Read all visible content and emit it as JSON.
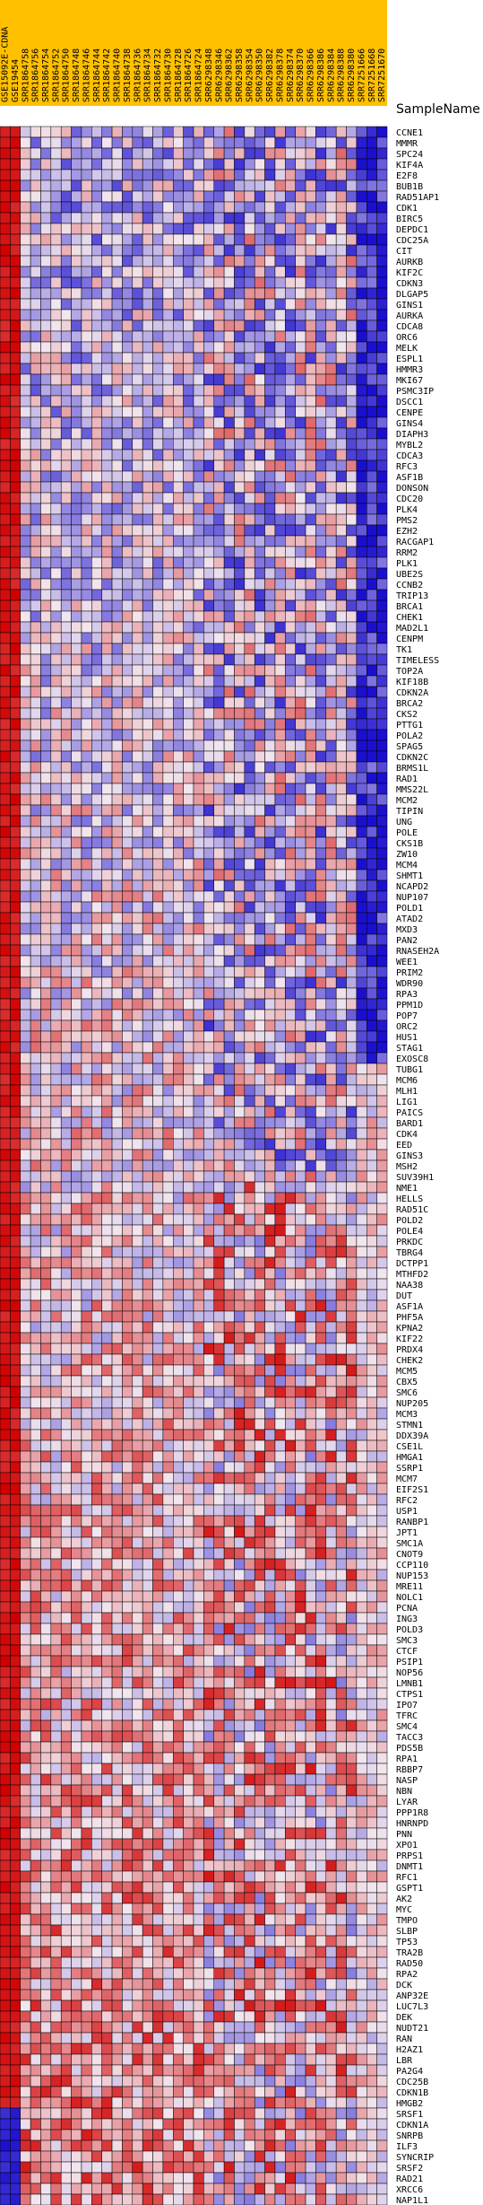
{
  "chart_data": {
    "type": "heatmap",
    "legend_label": "SampleName",
    "colors": {
      "low": "#1b0fcf",
      "mid": "#f2e6ee",
      "high": "#d10000",
      "sample_bar": "#ffc000",
      "grid": "#000000"
    },
    "value_range": [
      -1,
      1
    ],
    "samples": [
      "GSE15092E-CDNA",
      "GSE19454",
      "SRR1864758",
      "SRR1864756",
      "SRR1864754",
      "SRR1864752",
      "SRR1864750",
      "SRR1864748",
      "SRR1864746",
      "SRR1864744",
      "SRR1864742",
      "SRR1864740",
      "SRR1864738",
      "SRR1864736",
      "SRR1864734",
      "SRR1864732",
      "SRR1864730",
      "SRR1864728",
      "SRR1864726",
      "SRR1864724",
      "SRR6298348",
      "SRR6298346",
      "SRR6298362",
      "SRR6298358",
      "SRR6298354",
      "SRR6298350",
      "SRR6298382",
      "SRR6298378",
      "SRR6298374",
      "SRR6298370",
      "SRR6298366",
      "SRR6298386",
      "SRR6298384",
      "SRR6298388",
      "SRR6298380",
      "SRR7251666",
      "SRR7251668",
      "SRR7251670"
    ],
    "genes": [
      "CCNE1",
      "MMMR",
      "SPC24",
      "KIF4A",
      "E2F8",
      "BUB1B",
      "RAD51AP1",
      "CDK1",
      "BIRC5",
      "DEPDC1",
      "CDC25A",
      "CIT",
      "AURKB",
      "KIF2C",
      "CDKN3",
      "DLGAP5",
      "GINS1",
      "AURKA",
      "CDCA8",
      "ORC6",
      "MELK",
      "ESPL1",
      "HMMR3",
      "MKI67",
      "PSMC3IP",
      "DSCC1",
      "CENPE",
      "GINS4",
      "DIAPH3",
      "MYBL2",
      "CDCA3",
      "RFC3",
      "ASF1B",
      "DONSON",
      "CDC20",
      "PLK4",
      "PMS2",
      "EZH2",
      "RACGAP1",
      "RRM2",
      "PLK1",
      "UBE2S",
      "CCNB2",
      "TRIP13",
      "BRCA1",
      "CHEK1",
      "MAD2L1",
      "CENPM",
      "TK1",
      "TIMELESS",
      "TOP2A",
      "KIF18B",
      "CDKN2A",
      "BRCA2",
      "CKS2",
      "PTTG1",
      "POLA2",
      "SPAG5",
      "CDKN2C",
      "BRMS1L",
      "RAD1",
      "MMS22L",
      "MCM2",
      "TIPIN",
      "UNG",
      "POLE",
      "CKS1B",
      "ZW10",
      "MCM4",
      "SHMT1",
      "NCAPD2",
      "NUP107",
      "POLD1",
      "ATAD2",
      "MXD3",
      "PAN2",
      "RNASEH2A",
      "WEE1",
      "PRIM2",
      "WDR90",
      "RPA3",
      "PPM1D",
      "POP7",
      "ORC2",
      "HUS1",
      "STAG1",
      "EXOSC8",
      "TUBG1",
      "MCM6",
      "MLH1",
      "LIG1",
      "PAICS",
      "BARD1",
      "CDK4",
      "EED",
      "GINS3",
      "MSH2",
      "SUV39H1",
      "NME1",
      "HELLS",
      "RAD51C",
      "POLD2",
      "POLE4",
      "PRKDC",
      "TBRG4",
      "DCTPP1",
      "MTHFD2",
      "NAA38",
      "DUT",
      "ASF1A",
      "PHF5A",
      "KPNA2",
      "KIF22",
      "PRDX4",
      "CHEK2",
      "MCM5",
      "CBX5",
      "SMC6",
      "NUP205",
      "MCM3",
      "STMN1",
      "DDX39A",
      "CSE1L",
      "HMGA1",
      "SSRP1",
      "MCM7",
      "EIF2S1",
      "RFC2",
      "USP1",
      "RANBP1",
      "JPT1",
      "SMC1A",
      "CNOT9",
      "CCP110",
      "NUP153",
      "MRE11",
      "NOLC1",
      "PCNA",
      "ING3",
      "POLD3",
      "SMC3",
      "CTCF",
      "PSIP1",
      "NOP56",
      "LMNB1",
      "CTPS1",
      "IPO7",
      "TFRC",
      "SMC4",
      "TACC3",
      "PDS5B",
      "RPA1",
      "RBBP7",
      "NASP",
      "NBN",
      "LYAR",
      "PPP1R8",
      "HNRNPD",
      "PNN",
      "XPO1",
      "PRPS1",
      "DNMT1",
      "RFC1",
      "GSPT1",
      "AK2",
      "MYC",
      "TMPO",
      "SLBP",
      "TP53",
      "TRA2B",
      "RAD50",
      "RPA2",
      "DCK",
      "ANP32E",
      "LUC7L3",
      "DEK",
      "NUDT21",
      "RAN",
      "H2AZ1",
      "LBR",
      "PA2G4",
      "CDC25B",
      "CDKN1B",
      "HMGB2",
      "SRSF1",
      "CDKN1A",
      "SNRPB",
      "ILF3",
      "SYNCRIP",
      "SRSF2",
      "RAD21",
      "XRCC6",
      "NAP1L1"
    ]
  }
}
